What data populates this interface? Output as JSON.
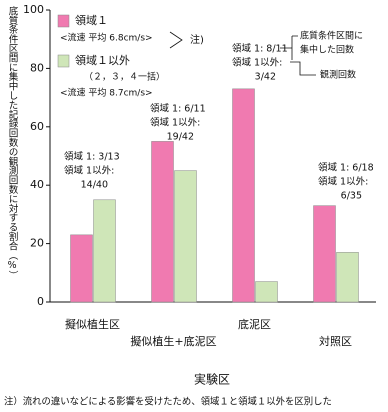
{
  "chart_data": {
    "type": "bar",
    "y_label": "底質条件区間に集中した記録回数の観測回数に対する割合（%）",
    "x_label": "実験区",
    "footnote": "注）流れの違いなどによる影響を受けたため、領域１と領域１以外を区別した",
    "categories": [
      "擬似植生区",
      "擬似植生+底泥区",
      "底泥区",
      "対照区"
    ],
    "series": [
      {
        "name": "領域１",
        "color": "#f07ab0",
        "values": [
          23,
          55,
          73,
          33
        ]
      },
      {
        "name": "領域１以外",
        "color": "#cfe6b8",
        "values": [
          35,
          45,
          7,
          17
        ]
      }
    ],
    "legend_notes": [
      "<流速 平均 6.8cm/s>",
      "（２，３，４一括）",
      "<流速 平均 8.7cm/s>",
      "注)"
    ],
    "annotations": [
      [
        "領域 1: 3/13",
        "領域 1以外:",
        "14/40"
      ],
      [
        "領域 1: 6/11",
        "領域 1以外:",
        "19/42"
      ],
      [
        "領域 1: 8/11",
        "領域 1以外:",
        "3/42"
      ],
      [
        "領域 1: 6/18",
        "領域 1以外:",
        "6/35"
      ]
    ],
    "callouts": [
      "底質条件区間に",
      "集中した回数",
      "観測回数"
    ],
    "ylim": [
      0,
      100
    ],
    "yticks": [
      0,
      20,
      40,
      60,
      80,
      100
    ]
  }
}
